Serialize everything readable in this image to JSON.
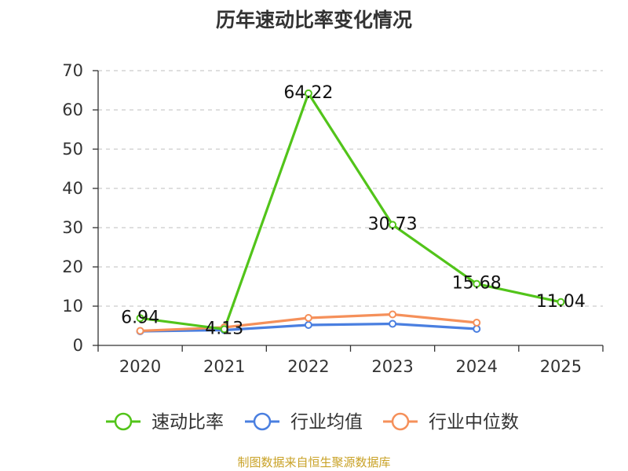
{
  "chart_data": {
    "type": "line",
    "title": "历年速动比率变化情况",
    "categories": [
      "2020",
      "2021",
      "2022",
      "2023",
      "2024",
      "2025"
    ],
    "ylim": [
      0,
      70
    ],
    "yticks": [
      0,
      10,
      20,
      30,
      40,
      50,
      60,
      70
    ],
    "grid": true,
    "legend_position": "bottom",
    "series": [
      {
        "name": "速动比率",
        "color": "#52c41a",
        "values": [
          6.94,
          4.13,
          64.22,
          30.73,
          15.68,
          11.04
        ],
        "labels": [
          "6.94",
          "4.13",
          "64.22",
          "30.73",
          "15.68",
          "11.04"
        ]
      },
      {
        "name": "行业均值",
        "color": "#4a7fe0",
        "values": [
          3.6,
          3.9,
          5.2,
          5.5,
          4.2,
          null
        ]
      },
      {
        "name": "行业中位数",
        "color": "#f5905a",
        "values": [
          3.7,
          4.6,
          7.0,
          7.9,
          5.8,
          null
        ]
      }
    ]
  },
  "source_text": "制图数据来自恒生聚源数据库",
  "source_color": "#c9a227"
}
